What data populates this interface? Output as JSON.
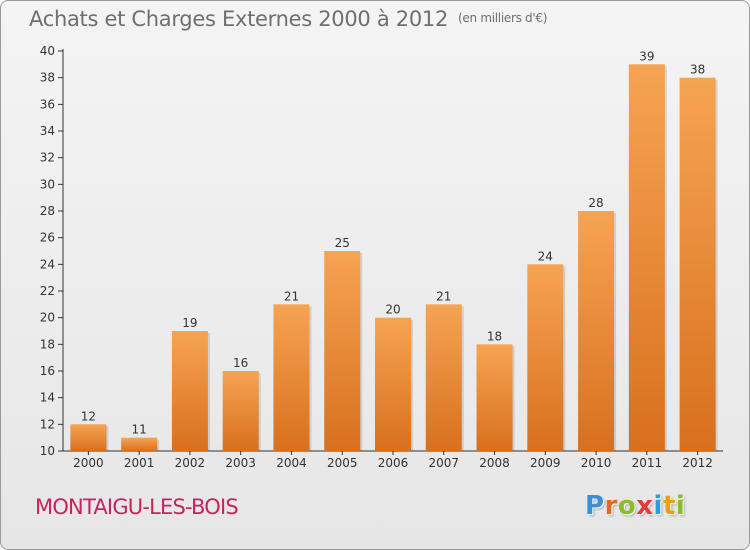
{
  "header": {
    "title": "Achats et Charges Externes 2000 à 2012",
    "unit": "(en milliers d'€)"
  },
  "commune": "MONTAIGU-LES-BOIS",
  "logo": {
    "text": "Proxiti",
    "letter_colors": [
      "#3b8fd6",
      "#e0682a",
      "#8cbb2e",
      "#e23a3a",
      "#2f9bd6",
      "#e6a018",
      "#8cbb2e"
    ]
  },
  "colors": {
    "bar_top": "#f6a452",
    "bar_bottom": "#d8701e",
    "axis": "#333333",
    "grid": "#d0d0d0",
    "text": "#333333"
  },
  "chart_data": {
    "type": "bar",
    "categories": [
      "2000",
      "2001",
      "2002",
      "2003",
      "2004",
      "2005",
      "2006",
      "2007",
      "2008",
      "2009",
      "2010",
      "2011",
      "2012"
    ],
    "values": [
      12,
      11,
      19,
      16,
      21,
      25,
      20,
      21,
      18,
      24,
      28,
      39,
      38
    ],
    "title": "Achats et Charges Externes 2000 à 2012",
    "ylim": [
      10,
      40
    ],
    "yticks": [
      10,
      12,
      14,
      16,
      18,
      20,
      22,
      24,
      26,
      28,
      30,
      32,
      34,
      36,
      38,
      40
    ],
    "grid": false,
    "legend": "none"
  }
}
